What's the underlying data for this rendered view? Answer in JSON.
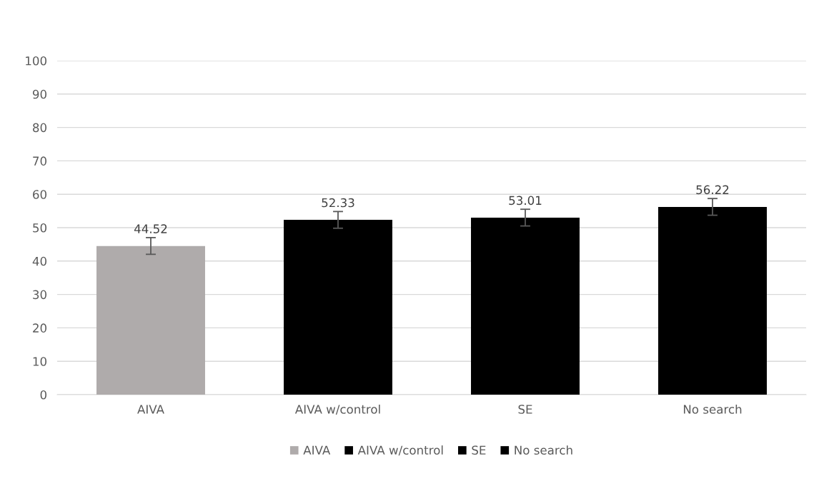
{
  "chart_data": {
    "type": "bar",
    "categories": [
      "AIVA",
      "AIVA w/control",
      "SE",
      "No search"
    ],
    "series": [
      {
        "name": "AIVA",
        "color": "#afabab",
        "values": [
          44.52,
          null,
          null,
          null
        ],
        "errors": [
          2.5,
          null,
          null,
          null
        ]
      },
      {
        "name": "AIVA w/control",
        "color": "#000000",
        "values": [
          null,
          52.33,
          null,
          null
        ],
        "errors": [
          null,
          2.5,
          null,
          null
        ]
      },
      {
        "name": "SE",
        "color": "#000000",
        "values": [
          null,
          null,
          53.01,
          null
        ],
        "errors": [
          null,
          null,
          2.5,
          null
        ]
      },
      {
        "name": "No search",
        "color": "#000000",
        "values": [
          null,
          null,
          null,
          56.22
        ],
        "errors": [
          null,
          null,
          null,
          2.5
        ]
      }
    ],
    "stacked": true,
    "data_labels": true,
    "ylim": [
      0,
      100
    ],
    "yticks": [
      0,
      10,
      20,
      30,
      40,
      50,
      60,
      70,
      80,
      90,
      100
    ],
    "grid": "y",
    "legend": "bottom"
  }
}
